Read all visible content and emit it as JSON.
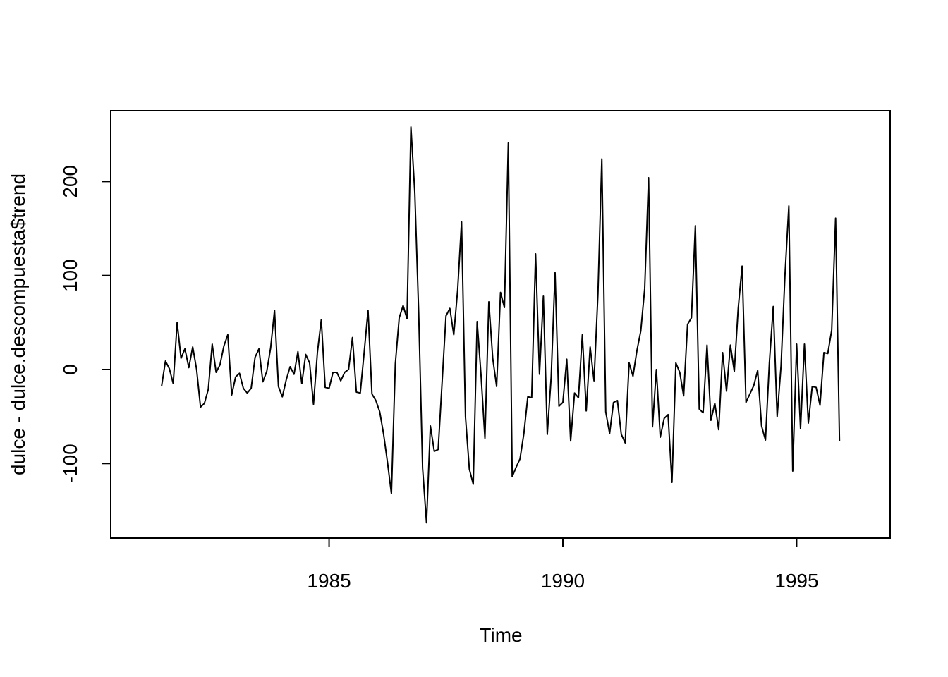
{
  "chart_data": {
    "type": "line",
    "xlabel": "Time",
    "ylabel": "dulce - dulce.descompuesta$trend",
    "start": [
      1981,
      6
    ],
    "frequency": 12,
    "color": "#000000",
    "values": [
      -18,
      9,
      1,
      -15,
      50,
      12,
      22,
      2,
      24,
      0,
      -40,
      -36,
      -21,
      27,
      -3,
      5,
      25,
      37,
      -27,
      -8,
      -4,
      -20,
      -25,
      -20,
      13,
      22,
      -13,
      -2,
      23,
      63,
      -18,
      -29,
      -11,
      3,
      -5,
      19,
      -15,
      16,
      7,
      -37,
      18,
      53,
      -19,
      -20,
      -3,
      -3,
      -12,
      -3,
      0,
      34,
      -24,
      -25,
      18,
      63,
      -26,
      -33,
      -45,
      -69,
      -99,
      -132,
      6,
      55,
      68,
      54,
      258,
      188,
      60,
      -105,
      -163,
      -60,
      -87,
      -85,
      -14,
      57,
      65,
      37,
      85,
      157,
      -50,
      -106,
      -122,
      51,
      -6,
      -73,
      72,
      12,
      -18,
      82,
      66,
      241,
      -114,
      -104,
      -95,
      -68,
      -29,
      -30,
      123,
      -5,
      78,
      -69,
      -8,
      103,
      -39,
      -35,
      11,
      -76,
      -25,
      -30,
      37,
      -44,
      24,
      -12,
      80,
      224,
      -45,
      -68,
      -35,
      -33,
      -69,
      -78,
      7,
      -7,
      20,
      41,
      86,
      204,
      -61,
      0,
      -72,
      -52,
      -48,
      -120,
      7,
      -3,
      -28,
      48,
      55,
      153,
      -42,
      -46,
      26,
      -54,
      -36,
      -64,
      18,
      -23,
      26,
      -2,
      65,
      110,
      -35,
      -26,
      -17,
      -1,
      -60,
      -75,
      7,
      67,
      -50,
      4,
      100,
      174,
      -108,
      27,
      -63,
      27,
      -57,
      -18,
      -19,
      -38,
      18,
      17,
      42,
      161,
      -76
    ],
    "xlim": [
      1980.33,
      1997.0
    ],
    "xticks": [
      1985,
      1990,
      1995
    ],
    "ylim": [
      -179.3,
      275.3
    ],
    "yticks": [
      -100,
      0,
      100,
      200
    ]
  }
}
